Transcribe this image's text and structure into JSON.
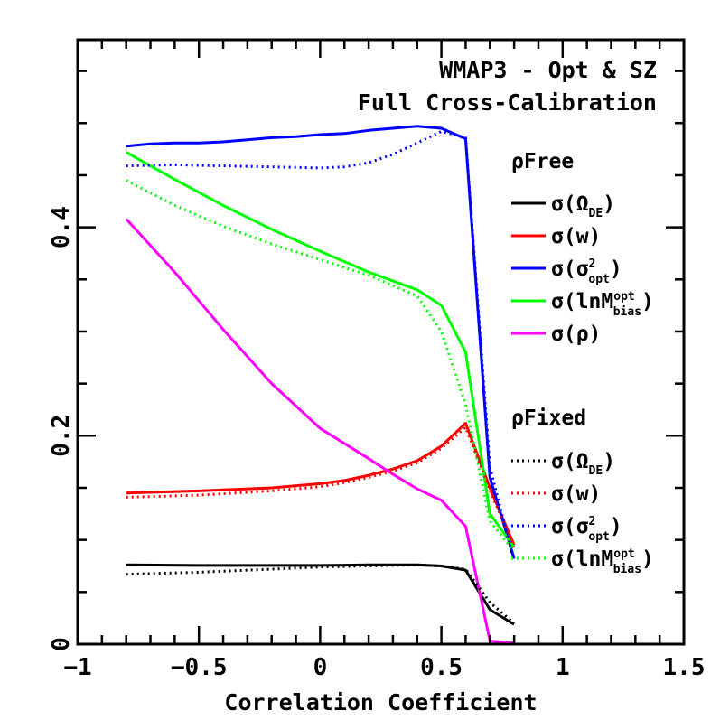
{
  "chart_data": {
    "type": "line",
    "title_lines": [
      "WMAP3 - Opt & SZ",
      "Full Cross-Calibration"
    ],
    "xlabel": "Correlation Coefficient",
    "ylabel": "",
    "xlim": [
      -1,
      1.5
    ],
    "ylim": [
      0,
      0.58
    ],
    "x_ticks": [
      -1,
      -0.5,
      0,
      0.5,
      1,
      1.5
    ],
    "x_tick_labels": [
      "−1",
      "−0.5",
      "0",
      "0.5",
      "1",
      "1.5"
    ],
    "y_ticks": [
      0,
      0.2,
      0.4
    ],
    "y_tick_labels": [
      "0",
      "0.2",
      "0.4"
    ],
    "grid": false,
    "legend_groups": [
      {
        "name": "ρFree",
        "style": "solid",
        "entries": [
          {
            "series": "free_ode",
            "prefix": "σ(Ω",
            "sub": "DE",
            "sup": "",
            "suffix": ")"
          },
          {
            "series": "free_w",
            "prefix": "σ(w)",
            "sub": "",
            "sup": "",
            "suffix": ""
          },
          {
            "series": "free_sig",
            "prefix": "σ(σ",
            "sub": "opt",
            "sup": "2",
            "suffix": ")"
          },
          {
            "series": "free_lnm",
            "prefix": "σ(lnM",
            "sub": "bias",
            "sup": "opt",
            "suffix": ")"
          },
          {
            "series": "free_rho",
            "prefix": "σ(ρ)",
            "sub": "",
            "sup": "",
            "suffix": ""
          }
        ]
      },
      {
        "name": "ρFixed",
        "style": "dotted",
        "entries": [
          {
            "series": "fixed_ode",
            "prefix": "σ(Ω",
            "sub": "DE",
            "sup": "",
            "suffix": ")"
          },
          {
            "series": "fixed_w",
            "prefix": "σ(w)",
            "sub": "",
            "sup": "",
            "suffix": ""
          },
          {
            "series": "fixed_sig",
            "prefix": "σ(σ",
            "sub": "opt",
            "sup": "2",
            "suffix": ")"
          },
          {
            "series": "fixed_lnm",
            "prefix": "σ(lnM",
            "sub": "bias",
            "sup": "opt",
            "suffix": ")"
          }
        ]
      }
    ],
    "series": [
      {
        "id": "free_ode",
        "color": "#000000",
        "dash": "solid",
        "x": [
          -0.8,
          -0.5,
          -0.2,
          0,
          0.2,
          0.4,
          0.5,
          0.6,
          0.7,
          0.8
        ],
        "y": [
          0.076,
          0.0755,
          0.0755,
          0.0755,
          0.076,
          0.076,
          0.075,
          0.071,
          0.033,
          0.019
        ]
      },
      {
        "id": "free_w",
        "color": "#ff0000",
        "dash": "solid",
        "x": [
          -0.8,
          -0.5,
          -0.2,
          0,
          0.1,
          0.2,
          0.3,
          0.4,
          0.5,
          0.6,
          0.7,
          0.8
        ],
        "y": [
          0.145,
          0.147,
          0.15,
          0.154,
          0.157,
          0.162,
          0.168,
          0.176,
          0.19,
          0.212,
          0.15,
          0.095
        ]
      },
      {
        "id": "free_sig",
        "color": "#0000ff",
        "dash": "solid",
        "x": [
          -0.8,
          -0.7,
          -0.6,
          -0.5,
          -0.4,
          -0.3,
          -0.2,
          -0.1,
          0,
          0.1,
          0.2,
          0.3,
          0.4,
          0.5,
          0.6,
          0.7,
          0.8
        ],
        "y": [
          0.478,
          0.48,
          0.481,
          0.481,
          0.482,
          0.484,
          0.486,
          0.487,
          0.489,
          0.49,
          0.493,
          0.495,
          0.497,
          0.495,
          0.485,
          0.16,
          0.082
        ]
      },
      {
        "id": "free_lnm",
        "color": "#00ff00",
        "dash": "solid",
        "x": [
          -0.8,
          -0.6,
          -0.4,
          -0.2,
          0,
          0.2,
          0.4,
          0.5,
          0.6,
          0.7,
          0.8
        ],
        "y": [
          0.472,
          0.446,
          0.421,
          0.398,
          0.377,
          0.357,
          0.34,
          0.325,
          0.28,
          0.125,
          0.093
        ]
      },
      {
        "id": "free_rho",
        "color": "#ff00ff",
        "dash": "solid",
        "x": [
          -0.8,
          -0.6,
          -0.4,
          -0.2,
          0,
          0.2,
          0.3,
          0.4,
          0.5,
          0.6,
          0.7,
          0.8
        ],
        "y": [
          0.408,
          0.357,
          0.302,
          0.25,
          0.207,
          0.178,
          0.163,
          0.149,
          0.138,
          0.113,
          0.003,
          0.001
        ]
      },
      {
        "id": "fixed_ode",
        "color": "#000000",
        "dash": "dotted",
        "x": [
          -0.8,
          -0.5,
          -0.2,
          0,
          0.2,
          0.4,
          0.5,
          0.6,
          0.7,
          0.8
        ],
        "y": [
          0.067,
          0.069,
          0.072,
          0.074,
          0.075,
          0.076,
          0.075,
          0.072,
          0.04,
          0.02
        ]
      },
      {
        "id": "fixed_w",
        "color": "#ff0000",
        "dash": "dotted",
        "x": [
          -0.8,
          -0.5,
          -0.2,
          0,
          0.1,
          0.2,
          0.3,
          0.4,
          0.5,
          0.6,
          0.7,
          0.8
        ],
        "y": [
          0.141,
          0.143,
          0.147,
          0.151,
          0.155,
          0.16,
          0.166,
          0.174,
          0.188,
          0.208,
          0.148,
          0.092
        ]
      },
      {
        "id": "fixed_sig",
        "color": "#0000ff",
        "dash": "dotted",
        "x": [
          -0.8,
          -0.6,
          -0.4,
          -0.2,
          0,
          0.1,
          0.2,
          0.3,
          0.4,
          0.5,
          0.6,
          0.7,
          0.8
        ],
        "y": [
          0.459,
          0.46,
          0.459,
          0.458,
          0.457,
          0.458,
          0.462,
          0.47,
          0.481,
          0.492,
          0.486,
          0.17,
          0.079
        ]
      },
      {
        "id": "fixed_lnm",
        "color": "#00ff00",
        "dash": "dotted",
        "x": [
          -0.8,
          -0.6,
          -0.4,
          -0.2,
          0,
          0.2,
          0.4,
          0.5,
          0.6,
          0.7,
          0.8
        ],
        "y": [
          0.445,
          0.421,
          0.401,
          0.384,
          0.369,
          0.354,
          0.334,
          0.3,
          0.23,
          0.118,
          0.089
        ]
      }
    ]
  }
}
